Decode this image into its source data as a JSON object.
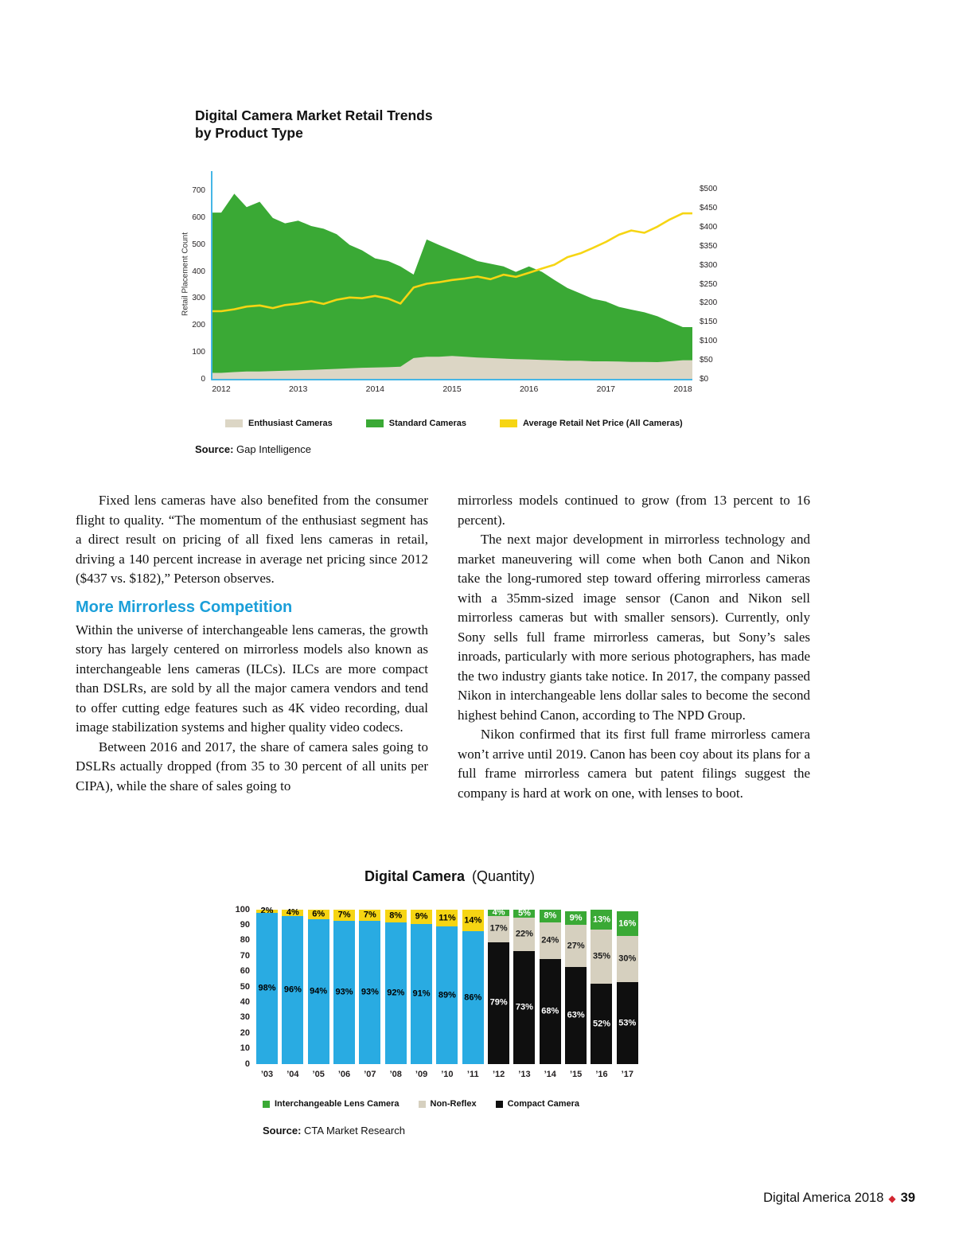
{
  "article": {
    "left_column": [
      {
        "type": "p",
        "indent": true,
        "text": "Fixed lens cameras have also benefited from the consumer flight to quality. “The momentum of the enthusiast segment has a direct result on pricing of all fixed lens cameras in retail, driving a 140 percent increase in average net pricing since 2012 ($437 vs. $182),” Peterson observes."
      },
      {
        "type": "h2",
        "text": "More Mirrorless Competition"
      },
      {
        "type": "p",
        "indent": false,
        "text": "Within the universe of interchangeable lens cameras, the growth story has largely centered on mirrorless models also known as interchangeable lens cameras (ILCs). ILCs are more compact than DSLRs, are sold by all the major camera vendors and tend to offer cutting edge features such as 4K video recording, dual image stabilization systems and higher quality video codecs."
      },
      {
        "type": "p",
        "indent": true,
        "text": "Between 2016 and 2017, the share of camera sales going to DSLRs actually dropped (from 35 to 30 percent of all units per CIPA), while the share of sales going to"
      }
    ],
    "right_column": [
      {
        "type": "p",
        "indent": false,
        "text": "mirrorless models continued to grow (from 13 percent to 16 percent)."
      },
      {
        "type": "p",
        "indent": true,
        "text": "The next major development in mirrorless technology and market maneuvering will come when both Canon and Nikon take the long-rumored step toward offering mirrorless cameras with a 35mm-sized image sensor (Canon and Nikon sell mirrorless cameras but with smaller sensors). Currently, only Sony sells full frame mirrorless cameras, but Sony’s sales inroads, particularly with more serious photographers, has made the two industry giants take notice. In 2017, the company passed Nikon in interchangeable lens dollar sales to become the second highest behind Canon, according to The NPD Group."
      },
      {
        "type": "p",
        "indent": true,
        "text": "Nikon confirmed that its first full frame mirrorless camera won’t arrive until 2019. Canon has been coy about its plans for a full frame mirrorless camera but patent filings suggest the company is hard at work on one, with lenses to boot."
      }
    ]
  },
  "footer": {
    "publication": "Digital America 2018",
    "separator": "◆",
    "page_number": "39",
    "diamond_color": "#d22630"
  },
  "chart_data": [
    {
      "id": "retail-trends",
      "type": "area-line",
      "title": [
        "Digital Camera Market Retail Trends",
        "by Product Type"
      ],
      "y_left_label": "Retail Placement Count",
      "y_left_ticks": [
        "700",
        "600",
        "500",
        "400",
        "300",
        "200",
        "100",
        "0"
      ],
      "y_left_range": [
        0,
        700
      ],
      "y_right_ticks": [
        "$500",
        "$450",
        "$400",
        "$350",
        "$300",
        "$250",
        "$200",
        "$150",
        "$100",
        "$50",
        "$0"
      ],
      "y_right_range": [
        0,
        500
      ],
      "x_ticks": [
        "2012",
        "2013",
        "2014",
        "2015",
        "2016",
        "2017",
        "2018"
      ],
      "axis_color": "#45b6e6",
      "x": [
        2012.0,
        2012.17,
        2012.33,
        2012.5,
        2012.67,
        2012.83,
        2013.0,
        2013.17,
        2013.33,
        2013.5,
        2013.67,
        2013.83,
        2014.0,
        2014.17,
        2014.33,
        2014.5,
        2014.67,
        2014.83,
        2015.0,
        2015.17,
        2015.33,
        2015.5,
        2015.67,
        2015.83,
        2016.0,
        2016.17,
        2016.33,
        2016.5,
        2016.67,
        2016.83,
        2017.0,
        2017.17,
        2017.33,
        2017.5,
        2017.67,
        2017.83,
        2018.0
      ],
      "series": [
        {
          "name": "Enthusiast Cameras",
          "kind": "area",
          "axis": "left",
          "color": "#dcd6c5",
          "values": [
            25,
            28,
            30,
            30,
            32,
            33,
            35,
            36,
            38,
            40,
            42,
            44,
            45,
            46,
            48,
            80,
            85,
            85,
            88,
            85,
            82,
            80,
            78,
            76,
            75,
            73,
            72,
            70,
            70,
            68,
            68,
            67,
            66,
            66,
            65,
            68,
            72
          ]
        },
        {
          "name": "Standard Cameras",
          "kind": "area",
          "axis": "left",
          "color": "#3aa935",
          "stacked_on": "Enthusiast Cameras",
          "values": [
            595,
            662,
            610,
            630,
            568,
            547,
            555,
            534,
            522,
            500,
            458,
            436,
            405,
            394,
            372,
            310,
            435,
            415,
            392,
            375,
            358,
            350,
            342,
            324,
            345,
            327,
            298,
            270,
            250,
            232,
            222,
            203,
            194,
            184,
            170,
            147,
            123
          ]
        },
        {
          "name": "Average Retail Net Price (All Cameras)",
          "kind": "line",
          "axis": "right",
          "color": "#f6d513",
          "values": [
            180,
            185,
            192,
            195,
            188,
            196,
            200,
            206,
            199,
            210,
            216,
            214,
            220,
            213,
            200,
            242,
            252,
            256,
            262,
            266,
            271,
            264,
            276,
            270,
            281,
            292,
            302,
            322,
            332,
            346,
            362,
            381,
            392,
            386,
            402,
            421,
            437
          ]
        }
      ],
      "legend": [
        {
          "label": "Enthusiast Cameras",
          "color": "#dcd6c5"
        },
        {
          "label": "Standard Cameras",
          "color": "#3aa935"
        },
        {
          "label": "Average Retail Net Price (All Cameras)",
          "color": "#f6d513"
        }
      ],
      "source_label": "Source:",
      "source_value": "Gap Intelligence"
    },
    {
      "id": "digital-camera-quantity",
      "type": "stacked-bar",
      "title_bold": "Digital Camera",
      "title_light": "(Quantity)",
      "y_ticks": [
        "100",
        "90",
        "80",
        "70",
        "60",
        "50",
        "40",
        "30",
        "20",
        "10",
        "0"
      ],
      "y_range": [
        0,
        100
      ],
      "colors": {
        "blue": "#29abe2",
        "yellow": "#f6d513",
        "black": "#0f0f0f",
        "tan": "#d6d0bf",
        "green": "#3aa935"
      },
      "label_colors": {
        "blue": "#000000",
        "yellow": "#000000",
        "black": "#ffffff",
        "tan": "#1a1a1a",
        "green": "#ffffff"
      },
      "bars": [
        {
          "category": "’03",
          "segments": [
            {
              "color": "blue",
              "value": 98,
              "label": "98%"
            },
            {
              "color": "yellow",
              "value": 2,
              "label": "2%"
            }
          ]
        },
        {
          "category": "’04",
          "segments": [
            {
              "color": "blue",
              "value": 96,
              "label": "96%"
            },
            {
              "color": "yellow",
              "value": 4,
              "label": "4%"
            }
          ]
        },
        {
          "category": "’05",
          "segments": [
            {
              "color": "blue",
              "value": 94,
              "label": "94%"
            },
            {
              "color": "yellow",
              "value": 6,
              "label": "6%"
            }
          ]
        },
        {
          "category": "’06",
          "segments": [
            {
              "color": "blue",
              "value": 93,
              "label": "93%"
            },
            {
              "color": "yellow",
              "value": 7,
              "label": "7%"
            }
          ]
        },
        {
          "category": "’07",
          "segments": [
            {
              "color": "blue",
              "value": 93,
              "label": "93%"
            },
            {
              "color": "yellow",
              "value": 7,
              "label": "7%"
            }
          ]
        },
        {
          "category": "’08",
          "segments": [
            {
              "color": "blue",
              "value": 92,
              "label": "92%"
            },
            {
              "color": "yellow",
              "value": 8,
              "label": "8%"
            }
          ]
        },
        {
          "category": "’09",
          "segments": [
            {
              "color": "blue",
              "value": 91,
              "label": "91%"
            },
            {
              "color": "yellow",
              "value": 9,
              "label": "9%"
            }
          ]
        },
        {
          "category": "’10",
          "segments": [
            {
              "color": "blue",
              "value": 89,
              "label": "89%"
            },
            {
              "color": "yellow",
              "value": 11,
              "label": "11%"
            }
          ]
        },
        {
          "category": "’11",
          "segments": [
            {
              "color": "blue",
              "value": 86,
              "label": "86%"
            },
            {
              "color": "yellow",
              "value": 14,
              "label": "14%"
            }
          ]
        },
        {
          "category": "’12",
          "segments": [
            {
              "color": "black",
              "value": 79,
              "label": "79%"
            },
            {
              "color": "tan",
              "value": 17,
              "label": "17%"
            },
            {
              "color": "green",
              "value": 4,
              "label": "4%"
            }
          ]
        },
        {
          "category": "’13",
          "segments": [
            {
              "color": "black",
              "value": 73,
              "label": "73%"
            },
            {
              "color": "tan",
              "value": 22,
              "label": "22%"
            },
            {
              "color": "green",
              "value": 5,
              "label": "5%"
            }
          ]
        },
        {
          "category": "’14",
          "segments": [
            {
              "color": "black",
              "value": 68,
              "label": "68%"
            },
            {
              "color": "tan",
              "value": 24,
              "label": "24%"
            },
            {
              "color": "green",
              "value": 8,
              "label": "8%"
            }
          ]
        },
        {
          "category": "’15",
          "segments": [
            {
              "color": "black",
              "value": 63,
              "label": "63%"
            },
            {
              "color": "tan",
              "value": 27,
              "label": "27%"
            },
            {
              "color": "green",
              "value": 9,
              "label": "9%"
            }
          ]
        },
        {
          "category": "’16",
          "segments": [
            {
              "color": "black",
              "value": 52,
              "label": "52%"
            },
            {
              "color": "tan",
              "value": 35,
              "label": "35%"
            },
            {
              "color": "green",
              "value": 13,
              "label": "13%"
            }
          ]
        },
        {
          "category": "’17",
          "segments": [
            {
              "color": "black",
              "value": 53,
              "label": "53%"
            },
            {
              "color": "tan",
              "value": 30,
              "label": "30%"
            },
            {
              "color": "green",
              "value": 16,
              "label": "16%"
            }
          ]
        }
      ],
      "legend": [
        {
          "label": "Interchangeable Lens Camera",
          "color": "#3aa935"
        },
        {
          "label": "Non-Reflex",
          "color": "#d6d0bf"
        },
        {
          "label": "Compact Camera",
          "color": "#0f0f0f"
        }
      ],
      "source_label": "Source:",
      "source_value": "CTA Market Research"
    }
  ]
}
